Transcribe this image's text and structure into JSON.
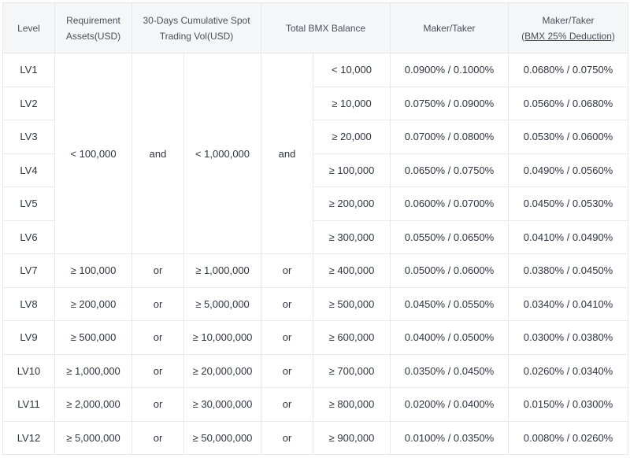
{
  "header": {
    "level": "Level",
    "requirement_line1": "Requirement",
    "requirement_line2": "Assets(USD)",
    "volume_line1": "30-Days Cumulative Spot",
    "volume_line2": "Trading Vol(USD)",
    "balance": "Total BMX Balance",
    "maker_taker": "Maker/Taker",
    "maker_taker_deduction_line1": "Maker/Taker",
    "maker_taker_deduction_line2": "(BMX 25% Deduction)"
  },
  "group": {
    "assets": "< 100,000",
    "connector1": "and",
    "volume": "< 1,000,000",
    "connector2": "and"
  },
  "rows": [
    {
      "level": "LV1",
      "assets": "",
      "c1": "",
      "volume": "",
      "c2": "",
      "balance": "< 10,000",
      "fee": "0.0900% / 0.1000%",
      "fee_bmx": "0.0680% / 0.0750%"
    },
    {
      "level": "LV2",
      "assets": "",
      "c1": "",
      "volume": "",
      "c2": "",
      "balance": "≥ 10,000",
      "fee": "0.0750% / 0.0900%",
      "fee_bmx": "0.0560% / 0.0680%"
    },
    {
      "level": "LV3",
      "assets": "",
      "c1": "",
      "volume": "",
      "c2": "",
      "balance": "≥ 20,000",
      "fee": "0.0700% / 0.0800%",
      "fee_bmx": "0.0530% / 0.0600%"
    },
    {
      "level": "LV4",
      "assets": "",
      "c1": "",
      "volume": "",
      "c2": "",
      "balance": "≥ 100,000",
      "fee": "0.0650% / 0.0750%",
      "fee_bmx": "0.0490% / 0.0560%"
    },
    {
      "level": "LV5",
      "assets": "",
      "c1": "",
      "volume": "",
      "c2": "",
      "balance": "≥ 200,000",
      "fee": "0.0600% / 0.0700%",
      "fee_bmx": "0.0450% / 0.0530%"
    },
    {
      "level": "LV6",
      "assets": "",
      "c1": "",
      "volume": "",
      "c2": "",
      "balance": "≥ 300,000",
      "fee": "0.0550% / 0.0650%",
      "fee_bmx": "0.0410% / 0.0490%"
    },
    {
      "level": "LV7",
      "assets": "≥ 100,000",
      "c1": "or",
      "volume": "≥ 1,000,000",
      "c2": "or",
      "balance": "≥ 400,000",
      "fee": "0.0500% / 0.0600%",
      "fee_bmx": "0.0380% / 0.0450%"
    },
    {
      "level": "LV8",
      "assets": "≥ 200,000",
      "c1": "or",
      "volume": "≥ 5,000,000",
      "c2": "or",
      "balance": "≥ 500,000",
      "fee": "0.0450% / 0.0550%",
      "fee_bmx": "0.0340% / 0.0410%"
    },
    {
      "level": "LV9",
      "assets": "≥ 500,000",
      "c1": "or",
      "volume": "≥ 10,000,000",
      "c2": "or",
      "balance": "≥ 600,000",
      "fee": "0.0400% / 0.0500%",
      "fee_bmx": "0.0300% / 0.0380%"
    },
    {
      "level": "LV10",
      "assets": "≥ 1,000,000",
      "c1": "or",
      "volume": "≥ 20,000,000",
      "c2": "or",
      "balance": "≥ 700,000",
      "fee": "0.0350% / 0.0450%",
      "fee_bmx": "0.0260% / 0.0340%"
    },
    {
      "level": "LV11",
      "assets": "≥ 2,000,000",
      "c1": "or",
      "volume": "≥ 30,000,000",
      "c2": "or",
      "balance": "≥ 800,000",
      "fee": "0.0200% / 0.0400%",
      "fee_bmx": "0.0150% / 0.0300%"
    },
    {
      "level": "LV12",
      "assets": "≥ 5,000,000",
      "c1": "or",
      "volume": "≥ 50,000,000",
      "c2": "or",
      "balance": "≥ 900,000",
      "fee": "0.0100% / 0.0350%",
      "fee_bmx": "0.0080% / 0.0260%"
    }
  ]
}
